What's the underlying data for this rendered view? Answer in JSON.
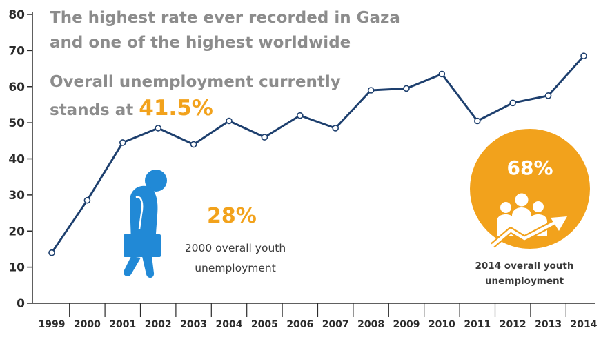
{
  "headline": "The highest rate ever recorded in Gaza and one of the highest worldwide",
  "overall": {
    "prefix": "Overall unemployment currently stands at",
    "value": "41.5%"
  },
  "callout_2000": {
    "value": "28%",
    "caption": "2000 overall youth unemployment"
  },
  "callout_2014": {
    "value": "68%",
    "caption": "2014 overall youth unemployment"
  },
  "colors": {
    "line": "#1d3f6e",
    "accent": "#f2a21c",
    "figure": "#2189d6",
    "text_muted": "#8c8c8c"
  },
  "icons": {
    "callout_2000": "dejected-person-with-briefcase-icon",
    "callout_2014": "group-with-rising-arrow-icon"
  },
  "chart_data": {
    "type": "line",
    "x": [
      "1999",
      "2000",
      "2001",
      "2002",
      "2003",
      "2004",
      "2005",
      "2006",
      "2007",
      "2008",
      "2009",
      "2010",
      "2011",
      "2012",
      "2013",
      "2014"
    ],
    "values": [
      14,
      28.5,
      44.5,
      48.5,
      44,
      50.5,
      46,
      52,
      48.5,
      59,
      59.5,
      63.5,
      50.5,
      55.5,
      57.5,
      68.5
    ],
    "yticks": [
      0,
      10,
      20,
      30,
      40,
      50,
      60,
      70,
      80
    ],
    "ylim": [
      0,
      80
    ],
    "grid": false,
    "title": "",
    "xlabel": "",
    "ylabel": ""
  }
}
